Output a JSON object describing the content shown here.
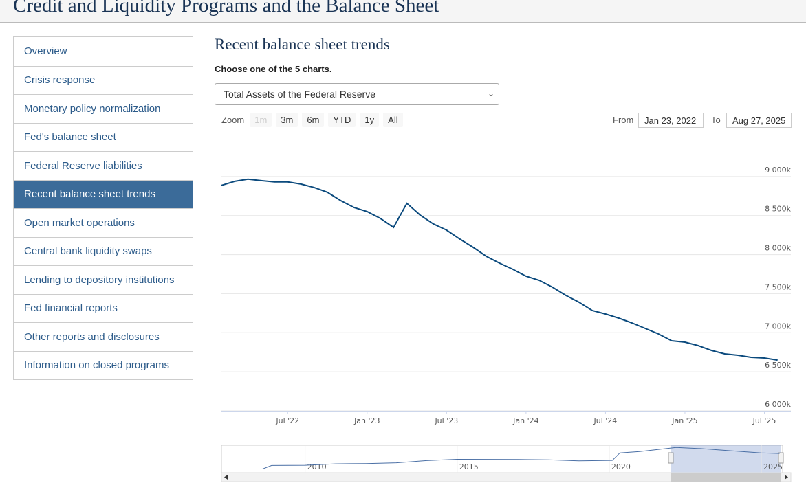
{
  "header": {
    "title": "Credit and Liquidity Programs and the Balance Sheet"
  },
  "nav": {
    "items": [
      "Overview",
      "Crisis response",
      "Monetary policy normalization",
      "Fed's balance sheet",
      "Federal Reserve liabilities",
      "Recent balance sheet trends",
      "Open market operations",
      "Central bank liquidity swaps",
      "Lending to depository institutions",
      "Fed financial reports",
      "Other reports and disclosures",
      "Information on closed programs"
    ],
    "active": 5
  },
  "section": {
    "title": "Recent balance sheet trends",
    "prompt": "Choose one of the 5 charts.",
    "select": "Total Assets of the Federal Reserve"
  },
  "chart_data": {
    "type": "line",
    "zoom_label": "Zoom",
    "zoom_buttons": [
      "1m",
      "3m",
      "6m",
      "YTD",
      "1y",
      "All"
    ],
    "zoom_disabled": 0,
    "from_label": "From",
    "from": "Jan 23, 2022",
    "to_label": "To",
    "to": "Aug 27, 2025",
    "x": [
      "2022-02",
      "2022-03",
      "2022-04",
      "2022-05",
      "2022-06",
      "2022-07",
      "2022-08",
      "2022-09",
      "2022-10",
      "2022-11",
      "2022-12",
      "2023-01",
      "2023-02",
      "2023-03",
      "2023-04",
      "2023-05",
      "2023-06",
      "2023-07",
      "2023-08",
      "2023-09",
      "2023-10",
      "2023-11",
      "2023-12",
      "2024-01",
      "2024-02",
      "2024-03",
      "2024-04",
      "2024-05",
      "2024-06",
      "2024-07",
      "2024-08",
      "2024-09",
      "2024-10",
      "2024-11",
      "2024-12",
      "2025-01",
      "2025-02",
      "2025-03",
      "2025-04",
      "2025-05",
      "2025-06",
      "2025-07",
      "2025-08"
    ],
    "series": [
      {
        "color": "#0b4a7d",
        "values": [
          8886,
          8938,
          8965,
          8947,
          8930,
          8930,
          8903,
          8859,
          8798,
          8692,
          8604,
          8551,
          8463,
          8349,
          8657,
          8507,
          8393,
          8314,
          8199,
          8094,
          7979,
          7891,
          7812,
          7724,
          7671,
          7583,
          7478,
          7390,
          7284,
          7240,
          7187,
          7126,
          7055,
          6985,
          6897,
          6879,
          6835,
          6774,
          6730,
          6712,
          6686,
          6677,
          6650
        ]
      }
    ],
    "xlim": [
      "2022-02",
      "2025-09"
    ],
    "xticks": [
      {
        "value": "2022-07",
        "label": "Jul '22"
      },
      {
        "value": "2023-01",
        "label": "Jan '23"
      },
      {
        "value": "2023-07",
        "label": "Jul '23"
      },
      {
        "value": "2024-01",
        "label": "Jan '24"
      },
      {
        "value": "2024-07",
        "label": "Jul '24"
      },
      {
        "value": "2025-01",
        "label": "Jan '25"
      },
      {
        "value": "2025-07",
        "label": "Jul '25"
      }
    ],
    "ylim": [
      6000,
      9500
    ],
    "yticks": [
      {
        "value": 6000,
        "label": "6 000k"
      },
      {
        "value": 6500,
        "label": "6 500k"
      },
      {
        "value": 7000,
        "label": "7 000k"
      },
      {
        "value": 7500,
        "label": "7 500k"
      },
      {
        "value": 8000,
        "label": "8 000k"
      },
      {
        "value": 8500,
        "label": "8 500k"
      },
      {
        "value": 9000,
        "label": "9 000k"
      }
    ],
    "grid": true,
    "navigator": {
      "color": "#4a6fa5",
      "x": [
        2007.6,
        2008.6,
        2008.9,
        2010,
        2011,
        2012,
        2013,
        2014,
        2015,
        2017,
        2018,
        2019,
        2020.1,
        2020.35,
        2021,
        2022.2,
        2023,
        2024,
        2025,
        2025.6
      ],
      "values": [
        900,
        900,
        2200,
        2300,
        2800,
        2900,
        3200,
        4000,
        4500,
        4450,
        4300,
        3900,
        4100,
        6900,
        7400,
        8950,
        8500,
        7700,
        6880,
        6650
      ],
      "xlim": [
        2007.25,
        2025.7
      ],
      "ylim": [
        0,
        9000
      ],
      "xticks": [
        2010,
        2015,
        2020,
        2025
      ]
    }
  }
}
